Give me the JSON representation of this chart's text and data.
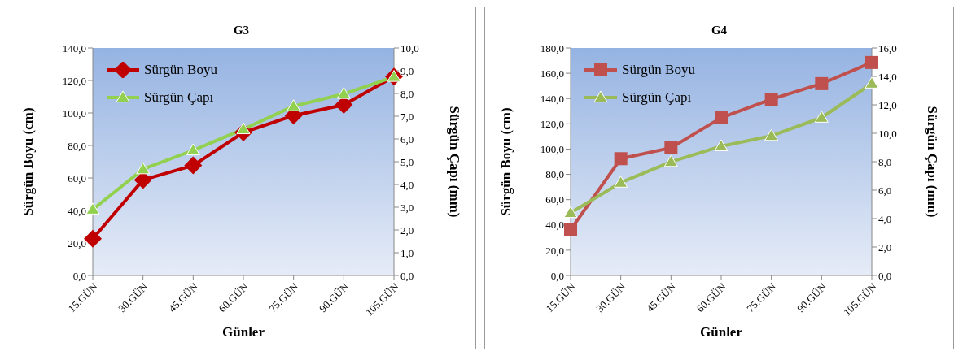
{
  "chart_data": [
    {
      "type": "line",
      "title": "G3",
      "xlabel": "Günler",
      "ylabel": "Sürgün Boyu (cm)",
      "y2label": "Sürgün Çapı (mm)",
      "categories": [
        "15.GÜN",
        "30.GÜN",
        "45.GÜN",
        "60.GÜN",
        "75.GÜN",
        "90.GÜN",
        "105.GÜN"
      ],
      "series": [
        {
          "name": "Sürgün Boyu",
          "color": "#c00000",
          "marker": "diamond",
          "values": [
            22.6,
            58.8,
            67.7,
            88,
            98.4,
            105,
            122.4
          ]
        },
        {
          "name": "Sürgün Çapı",
          "color": "#92d050",
          "marker": "triangle",
          "axis": "y2",
          "values": [
            2.9,
            4.67,
            5.5,
            6.43,
            7.44,
            7.98,
            8.73
          ]
        }
      ],
      "ylim": [
        0,
        140
      ],
      "yticks": [
        {
          "value": 0,
          "label": "0,0"
        },
        {
          "value": 20,
          "label": "20,0"
        },
        {
          "value": 40,
          "label": "40,0"
        },
        {
          "value": 60,
          "label": "60,0"
        },
        {
          "value": 80,
          "label": "80,0"
        },
        {
          "value": 100,
          "label": "100,0"
        },
        {
          "value": 120,
          "label": "120,0"
        },
        {
          "value": 140,
          "label": "140,0"
        }
      ],
      "y2lim": [
        0,
        10
      ],
      "y2ticks": [
        {
          "value": 0,
          "label": "0,0"
        },
        {
          "value": 1,
          "label": "1,0"
        },
        {
          "value": 2,
          "label": "2,0"
        },
        {
          "value": 3,
          "label": "3,0"
        },
        {
          "value": 4,
          "label": "4,0"
        },
        {
          "value": 5,
          "label": "5,0"
        },
        {
          "value": 6,
          "label": "6,0"
        },
        {
          "value": 7,
          "label": "7,0"
        },
        {
          "value": 8,
          "label": "8,0"
        },
        {
          "value": 9,
          "label": "9,0"
        },
        {
          "value": 10,
          "label": "10,0"
        }
      ],
      "legend": "top left",
      "grid": false
    },
    {
      "type": "line",
      "title": "G4",
      "xlabel": "Günler",
      "ylabel": "Sürgün Boyu (cm)",
      "y2label": "Sürgün Çapı (mm)",
      "categories": [
        "15.GÜN",
        "30.GÜN",
        "45.GÜN",
        "60.GÜN",
        "75.GÜN",
        "90.GÜN",
        "105.GÜN"
      ],
      "series": [
        {
          "name": "Sürgün Boyu",
          "color": "#c0504d",
          "marker": "square",
          "values": [
            36.2,
            92.4,
            101,
            124.8,
            139.4,
            151.8,
            168.5
          ]
        },
        {
          "name": "Sürgün Çapı",
          "color": "#9bbb59",
          "marker": "triangle",
          "axis": "y2",
          "values": [
            4.4,
            6.53,
            7.99,
            9.09,
            9.82,
            11.1,
            13.5
          ]
        }
      ],
      "ylim": [
        0,
        180
      ],
      "yticks": [
        {
          "value": 0,
          "label": "0,0"
        },
        {
          "value": 20,
          "label": "20,0"
        },
        {
          "value": 40,
          "label": "40,0"
        },
        {
          "value": 60,
          "label": "60,0"
        },
        {
          "value": 80,
          "label": "80,0"
        },
        {
          "value": 100,
          "label": "100,0"
        },
        {
          "value": 120,
          "label": "120,0"
        },
        {
          "value": 140,
          "label": "140,0"
        },
        {
          "value": 160,
          "label": "160,0"
        },
        {
          "value": 180,
          "label": "180,0"
        }
      ],
      "y2lim": [
        0,
        16
      ],
      "y2ticks": [
        {
          "value": 0,
          "label": "0,0"
        },
        {
          "value": 2,
          "label": "2,0"
        },
        {
          "value": 4,
          "label": "4,0"
        },
        {
          "value": 6,
          "label": "6,0"
        },
        {
          "value": 8,
          "label": "8,0"
        },
        {
          "value": 10,
          "label": "10,0"
        },
        {
          "value": 12,
          "label": "12,0"
        },
        {
          "value": 14,
          "label": "14,0"
        },
        {
          "value": 16,
          "label": "16,0"
        }
      ],
      "legend": "top left",
      "grid": false
    }
  ]
}
